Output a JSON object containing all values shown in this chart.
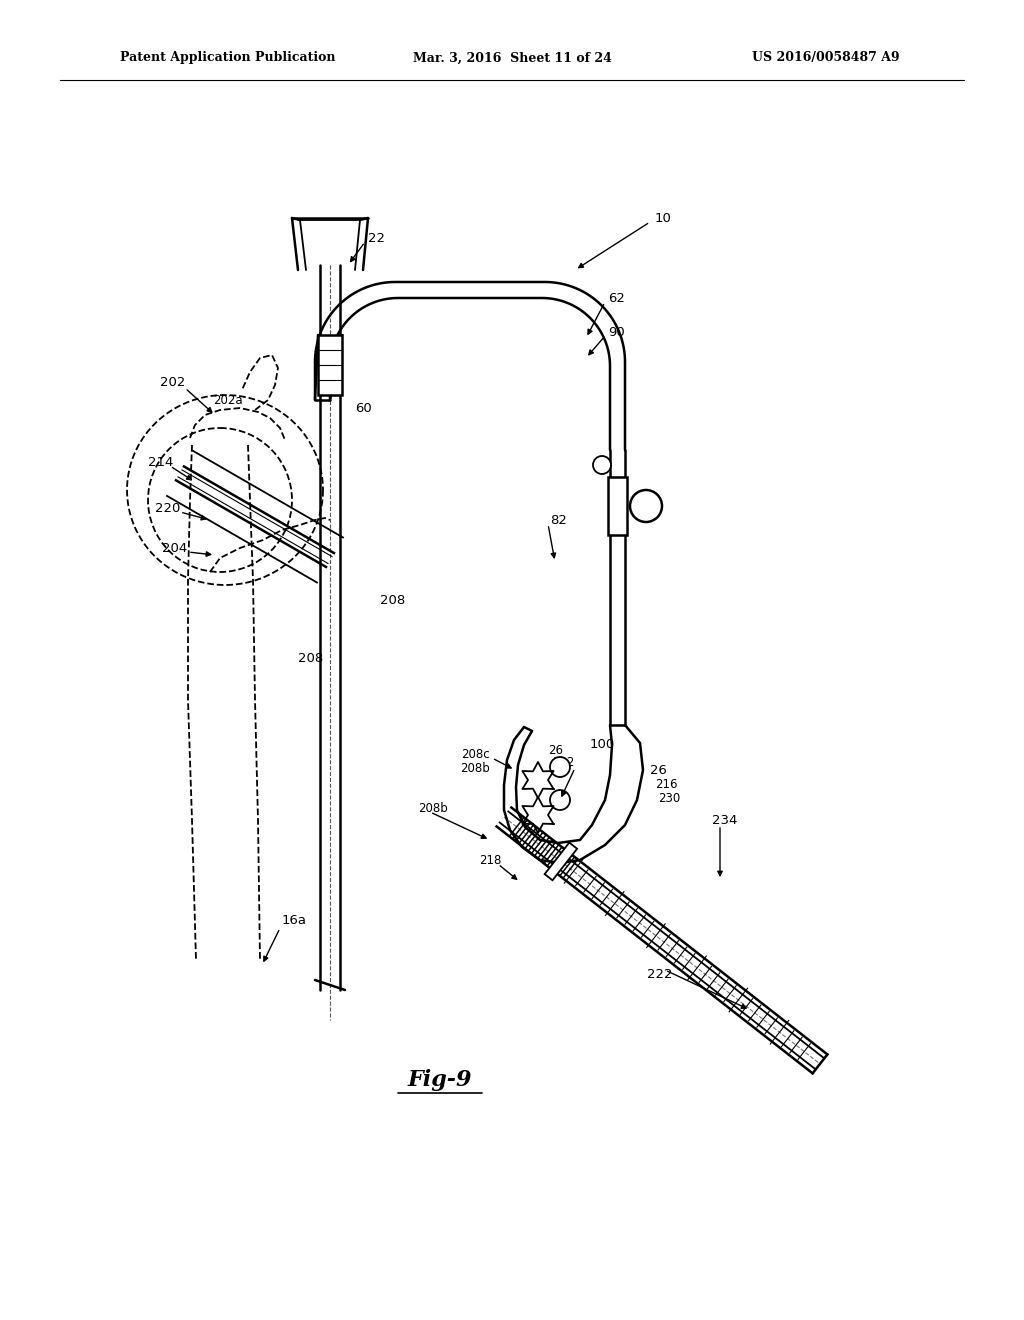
{
  "background_color": "#ffffff",
  "header_left": "Patent Application Publication",
  "header_mid": "Mar. 3, 2016  Sheet 11 of 24",
  "header_right": "US 2016/0058487 A9",
  "figure_label": "Fig-9",
  "line_color": "#000000",
  "fig_width": 10.24,
  "fig_height": 13.2,
  "dpi": 100
}
